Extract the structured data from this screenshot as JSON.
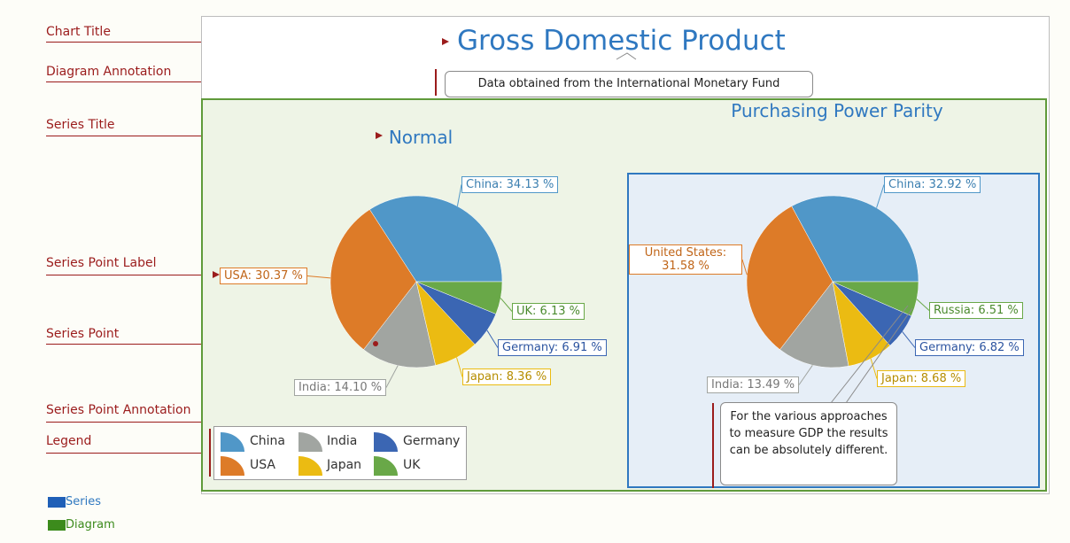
{
  "callouts": {
    "chart_title": "Chart Title",
    "diagram_annotation": "Diagram Annotation",
    "series_title": "Series Title",
    "series_point_label": "Series Point Label",
    "series_point": "Series Point",
    "series_point_annotation": "Series Point Annotation",
    "legend": "Legend"
  },
  "key": {
    "series": "Series",
    "diagram": "Diagram"
  },
  "colors": {
    "China": "#5097c8",
    "USA": "#dd7b28",
    "India": "#a1a5a1",
    "Japan": "#ebbb12",
    "Germany": "#3b66b3",
    "UK": "#69a848",
    "callout": "#9b1c1c",
    "series_key": "#1f5fb7",
    "diagram_key": "#3c8b1c"
  },
  "chart_data": {
    "type": "pie",
    "title": "Gross Domestic Product",
    "diagram_annotation": "Data obtained from the International Monetary Fund",
    "series": [
      {
        "name": "Normal",
        "labels": [
          "China",
          "USA",
          "India",
          "Japan",
          "Germany",
          "UK"
        ],
        "values": [
          34.13,
          30.37,
          14.1,
          8.36,
          6.91,
          6.13
        ],
        "point_labels": [
          "China: 34.13 %",
          "USA: 30.37 %",
          "India: 14.10 %",
          "Japan: 8.36 %",
          "Germany: 6.91 %",
          "UK: 6.13 %"
        ]
      },
      {
        "name": "Purchasing Power Parity",
        "labels": [
          "China",
          "United States",
          "India",
          "Japan",
          "Germany",
          "Russia"
        ],
        "values": [
          32.92,
          31.58,
          13.49,
          8.68,
          6.82,
          6.51
        ],
        "point_labels": [
          "China: 32.92 %",
          "United States: 31.58 %",
          "India: 13.49 %",
          "Japan: 8.68 %",
          "Germany: 6.82 %",
          "Russia: 6.51 %"
        ],
        "point_annotation": "For the various approaches to measure GDP the results can be absolutely different."
      }
    ],
    "legend": {
      "placement": "bottom-left",
      "entries": [
        "China",
        "India",
        "Germany",
        "USA",
        "Japan",
        "UK"
      ]
    }
  }
}
